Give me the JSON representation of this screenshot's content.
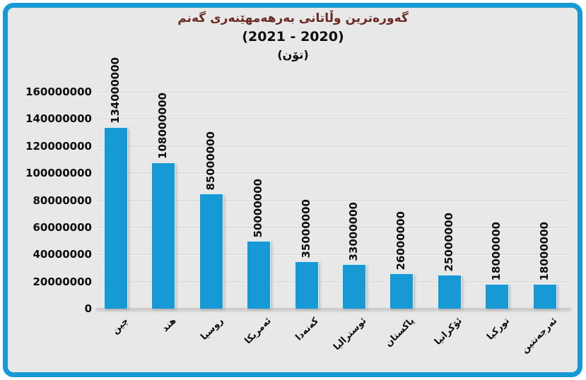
{
  "chart_data": {
    "type": "bar",
    "title_line1": "گەورەترین وڵاتانی بەرهەمهێنەری گەنم",
    "title_line2": "(2020 - 2021)",
    "title_line3": "(تۆن)",
    "categories": [
      "چین",
      "هند",
      "روسیا",
      "ئەمریکا",
      "کەنەدا",
      "ئوسترالیا",
      "پاکستان",
      "ئۆکرانیا",
      "تورکیا",
      "ئەرجەنتین"
    ],
    "values": [
      134000000,
      108000000,
      85000000,
      50000000,
      35000000,
      33000000,
      26000000,
      25000000,
      18000000,
      18000000
    ],
    "value_labels": [
      "134000000",
      "108000000",
      "85000000",
      "50000000",
      "35000000",
      "33000000",
      "26000000",
      "25000000",
      "18000000",
      "18000000"
    ],
    "y_ticks": [
      0,
      20000000,
      40000000,
      60000000,
      80000000,
      100000000,
      120000000,
      140000000,
      160000000
    ],
    "y_tick_labels": [
      "0",
      "20000000",
      "40000000",
      "60000000",
      "80000000",
      "100000000",
      "120000000",
      "140000000",
      "160000000"
    ],
    "ylim": [
      0,
      160000000
    ],
    "xlabel": "",
    "ylabel": "",
    "grid": true,
    "legend": "none",
    "colors": {
      "bar": "#1799d5",
      "frame_border": "#1799d5",
      "plot_background": "#e8e8e8",
      "gridline": "#d4d4d4",
      "title": "#6b2a24",
      "text": "#0d0d0d"
    }
  }
}
